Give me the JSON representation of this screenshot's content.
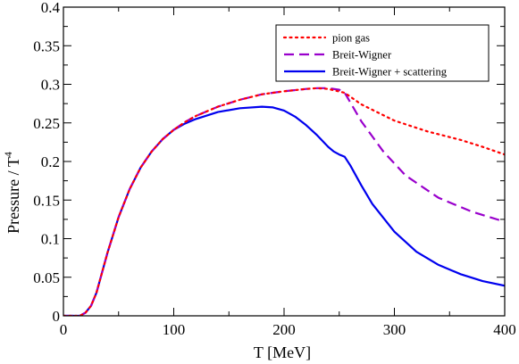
{
  "chart_data": {
    "type": "line",
    "xlabel": "T  [MeV]",
    "ylabel": "Pressure / T",
    "ylabel_superscript": "4",
    "xlim": [
      0,
      400
    ],
    "ylim": [
      0,
      0.4
    ],
    "x_ticks": [
      0,
      100,
      200,
      300,
      400
    ],
    "y_ticks": [
      0,
      0.05,
      0.1,
      0.15,
      0.2,
      0.25,
      0.3,
      0.35,
      0.4
    ],
    "x_tick_labels": [
      "0",
      "100",
      "200",
      "300",
      "400"
    ],
    "y_tick_labels": [
      "0",
      "0.05",
      "0.1",
      "0.15",
      "0.2",
      "0.25",
      "0.3",
      "0.35",
      "0.4"
    ],
    "legend_position": "top-right",
    "series": [
      {
        "name": "pion gas",
        "color": "#ff0000",
        "style": "dotted",
        "x": [
          0,
          15,
          20,
          25,
          30,
          40,
          50,
          60,
          70,
          80,
          90,
          100,
          110,
          120,
          140,
          160,
          180,
          200,
          220,
          230,
          240,
          255,
          270,
          300,
          330,
          360,
          380,
          400
        ],
        "y": [
          0,
          0.0,
          0.004,
          0.013,
          0.03,
          0.082,
          0.128,
          0.164,
          0.192,
          0.213,
          0.229,
          0.241,
          0.251,
          0.259,
          0.271,
          0.28,
          0.287,
          0.291,
          0.294,
          0.295,
          0.294,
          0.289,
          0.274,
          0.253,
          0.239,
          0.228,
          0.219,
          0.209
        ]
      },
      {
        "name": "Breit-Wigner",
        "color": "#9900cc",
        "style": "dashed",
        "x": [
          0,
          15,
          20,
          25,
          30,
          40,
          50,
          60,
          70,
          80,
          90,
          100,
          110,
          120,
          140,
          160,
          180,
          200,
          220,
          230,
          240,
          250,
          255,
          270,
          290,
          310,
          340,
          370,
          400
        ],
        "y": [
          0,
          0.0,
          0.004,
          0.013,
          0.03,
          0.082,
          0.128,
          0.164,
          0.192,
          0.213,
          0.229,
          0.241,
          0.251,
          0.259,
          0.271,
          0.28,
          0.287,
          0.291,
          0.294,
          0.295,
          0.295,
          0.293,
          0.289,
          0.252,
          0.213,
          0.182,
          0.153,
          0.135,
          0.122
        ]
      },
      {
        "name": "Breit-Wigner + scattering",
        "color": "#0000ee",
        "style": "solid",
        "x": [
          0,
          15,
          20,
          25,
          30,
          40,
          50,
          60,
          70,
          80,
          90,
          100,
          110,
          120,
          140,
          160,
          180,
          190,
          200,
          210,
          220,
          230,
          240,
          245,
          250,
          255,
          260,
          270,
          280,
          300,
          320,
          340,
          360,
          380,
          400
        ],
        "y": [
          0,
          0.0,
          0.004,
          0.013,
          0.03,
          0.082,
          0.128,
          0.164,
          0.192,
          0.213,
          0.229,
          0.241,
          0.249,
          0.255,
          0.264,
          0.269,
          0.271,
          0.27,
          0.266,
          0.258,
          0.247,
          0.234,
          0.219,
          0.213,
          0.209,
          0.206,
          0.195,
          0.169,
          0.145,
          0.109,
          0.083,
          0.066,
          0.054,
          0.045,
          0.039
        ]
      }
    ]
  }
}
